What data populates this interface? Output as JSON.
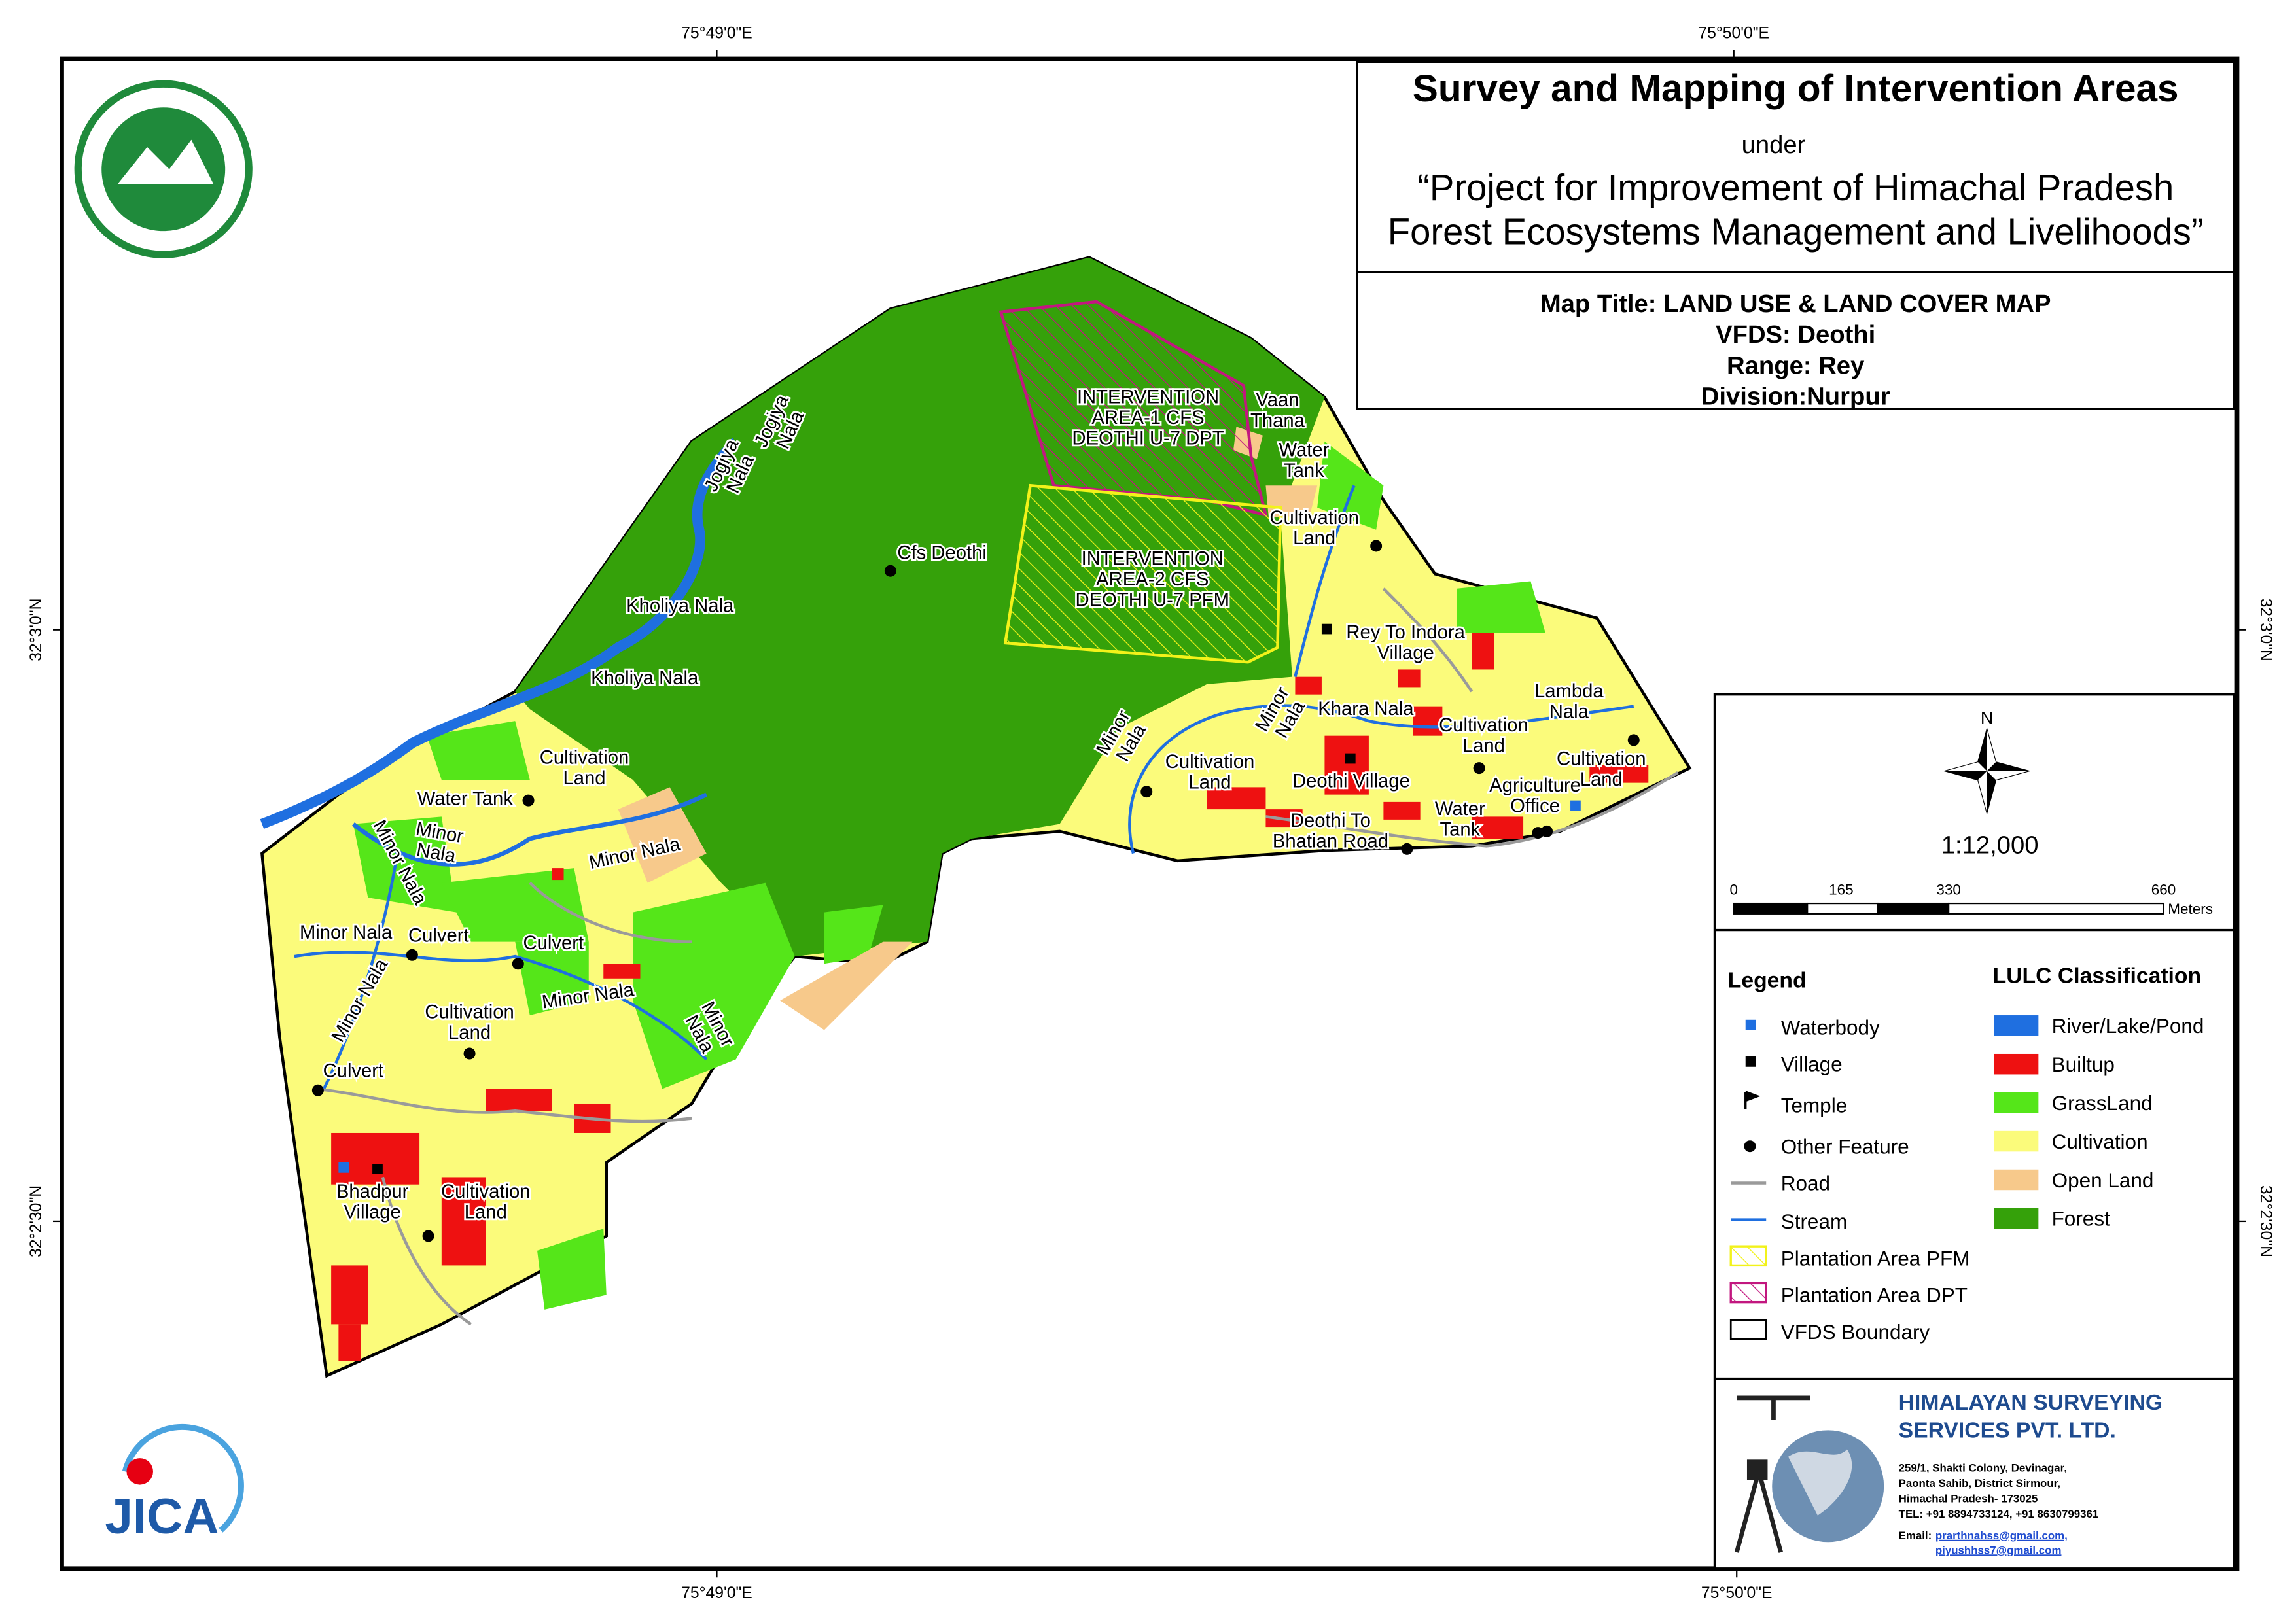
{
  "coordinates": {
    "top_left": "75°49'0\"E",
    "top_right": "75°50'0\"E",
    "bottom_left": "75°49'0\"E",
    "bottom_right": "75°50'0\"E",
    "left_upper": "32°3'0\"N",
    "left_lower": "32°2'30\"N",
    "right_upper": "32°3'0\"N",
    "right_lower": "32°2'30\"N"
  },
  "header": {
    "title": "Survey and Mapping of Intervention Areas",
    "under": "under",
    "project_line1": "“Project for Improvement of Himachal Pradesh",
    "project_line2": "Forest Ecosystems Management and Livelihoods”"
  },
  "map_info": {
    "map_title": "Map Title: LAND USE & LAND COVER MAP",
    "vfds": "VFDS: Deothi",
    "range": "Range: Rey",
    "division": "Division:Nurpur"
  },
  "north": "N",
  "scale": "1:12,000",
  "scale_bar": {
    "labels": [
      "0",
      "165",
      "330",
      "660"
    ],
    "unit": "Meters"
  },
  "legend": {
    "title": "Legend",
    "items": [
      "Waterbody",
      "Village",
      "Temple",
      "Other Feature",
      "Road",
      "Stream",
      "Plantation Area PFM",
      "Plantation Area DPT",
      "VFDS Boundary"
    ]
  },
  "lulc": {
    "title": "LULC Classification",
    "items": [
      {
        "name": "River/Lake/Pond",
        "color": "#1f6fe0"
      },
      {
        "name": "Builtup",
        "color": "#ee1111"
      },
      {
        "name": "GrassLand",
        "color": "#55e619"
      },
      {
        "name": "Cultivation",
        "color": "#fbfb7b"
      },
      {
        "name": "Open Land",
        "color": "#f7c98b"
      },
      {
        "name": "Forest",
        "color": "#35a10a"
      }
    ]
  },
  "company": {
    "name_line1": "HIMALAYAN SURVEYING",
    "name_line2": "SERVICES PVT. LTD.",
    "address": [
      "259/1, Shakti Colony, Devinagar,",
      "Paonta Sahib, District Sirmour,",
      "Himachal Pradesh- 173025",
      "TEL: +91 8894733124, +91 8630799361"
    ],
    "email_label": "Email:",
    "emails": [
      "prarthnahss@gmail.com,",
      "piyushhss7@gmail.com"
    ]
  },
  "logo_text": "JICA",
  "labels": [
    [
      "INTERVENTION",
      "AREA-1 CFS",
      "DEOTHI U-7 DPT"
    ],
    [
      "Vaan",
      "Thana"
    ],
    [
      "Water",
      "Tank"
    ],
    [
      "Cultivation",
      "Land"
    ],
    [
      "INTERVENTION",
      "AREA-2 CFS",
      "DEOTHI U-7 PFM"
    ],
    [
      "Cfs Deothi"
    ],
    [
      "Jogiya",
      "Nala"
    ],
    [
      "Jogiya",
      "Nala"
    ],
    [
      "Kholiya Nala"
    ],
    [
      "Kholiya Nala"
    ],
    [
      "Rey To Indora",
      "Village"
    ],
    [
      "Minor",
      "Nala"
    ],
    [
      "Minor",
      "Nala"
    ],
    [
      "Khara Nala"
    ],
    [
      "Cultivation",
      "Land"
    ],
    [
      "Lambda",
      "Nala"
    ],
    [
      "Cultivation",
      "Land"
    ],
    [
      "Cultivation",
      "Land"
    ],
    [
      "Deothi Village"
    ],
    [
      "Agriculture",
      "Office"
    ],
    [
      "Water",
      "Tank"
    ],
    [
      "Deothi To",
      "Bhatian Road"
    ],
    [
      "Cultivation",
      "Land"
    ],
    [
      "Water Tank"
    ],
    [
      "Minor",
      "Nala"
    ],
    [
      "Minor Nala"
    ],
    [
      "Minor Nala"
    ],
    [
      "Minor Nala"
    ],
    [
      "Culvert"
    ],
    [
      "Culvert"
    ],
    [
      "Minor Nala"
    ],
    [
      "Cultivation",
      "Land"
    ],
    [
      "Minor Nala"
    ],
    [
      "Minor",
      "Nala"
    ],
    [
      "Culvert"
    ],
    [
      "Bhadpur",
      "Village"
    ],
    [
      "Cultivation",
      "Land"
    ]
  ]
}
